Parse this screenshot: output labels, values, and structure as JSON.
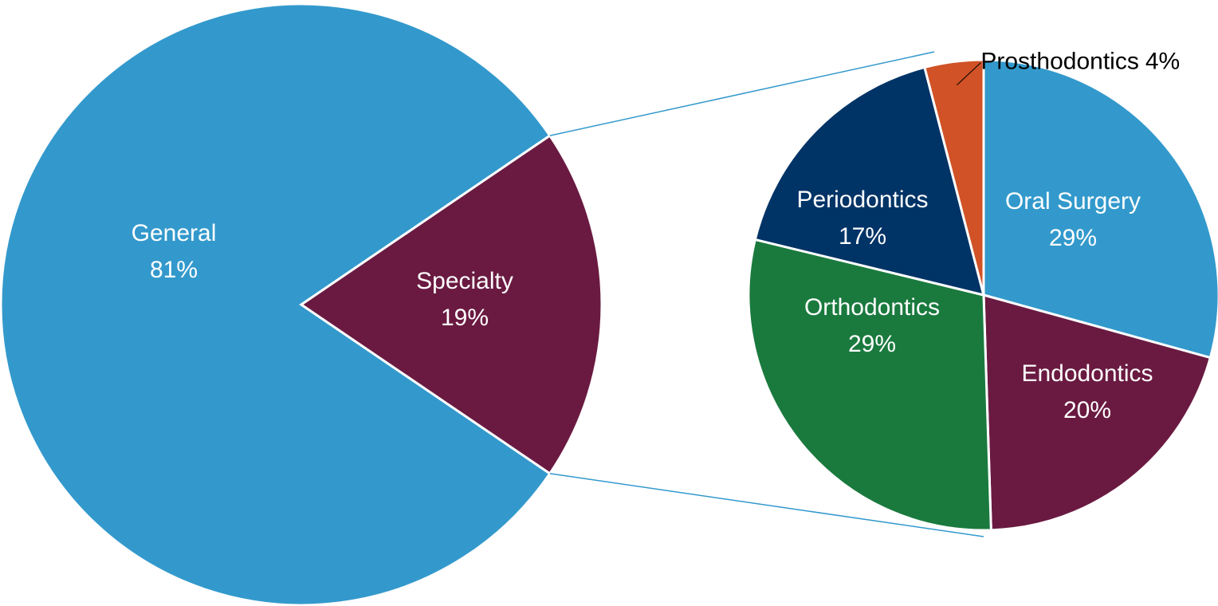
{
  "chart_data": [
    {
      "type": "pie",
      "categories": [
        "General",
        "Specialty"
      ],
      "values": [
        81,
        19
      ],
      "value_labels": [
        "81%",
        "19%"
      ],
      "colors": [
        "#3399cc",
        "#6a1a41"
      ]
    },
    {
      "type": "pie",
      "categories": [
        "Oral Surgery",
        "Endodontics",
        "Orthodontics",
        "Periodontics",
        "Prosthodontics"
      ],
      "values": [
        29,
        20,
        29,
        17,
        4
      ],
      "value_labels": [
        "29%",
        "20%",
        "29%",
        "17%",
        "4%"
      ],
      "colors": [
        "#3399cc",
        "#6a1a41",
        "#1a7a3e",
        "#003366",
        "#d05226"
      ]
    }
  ]
}
